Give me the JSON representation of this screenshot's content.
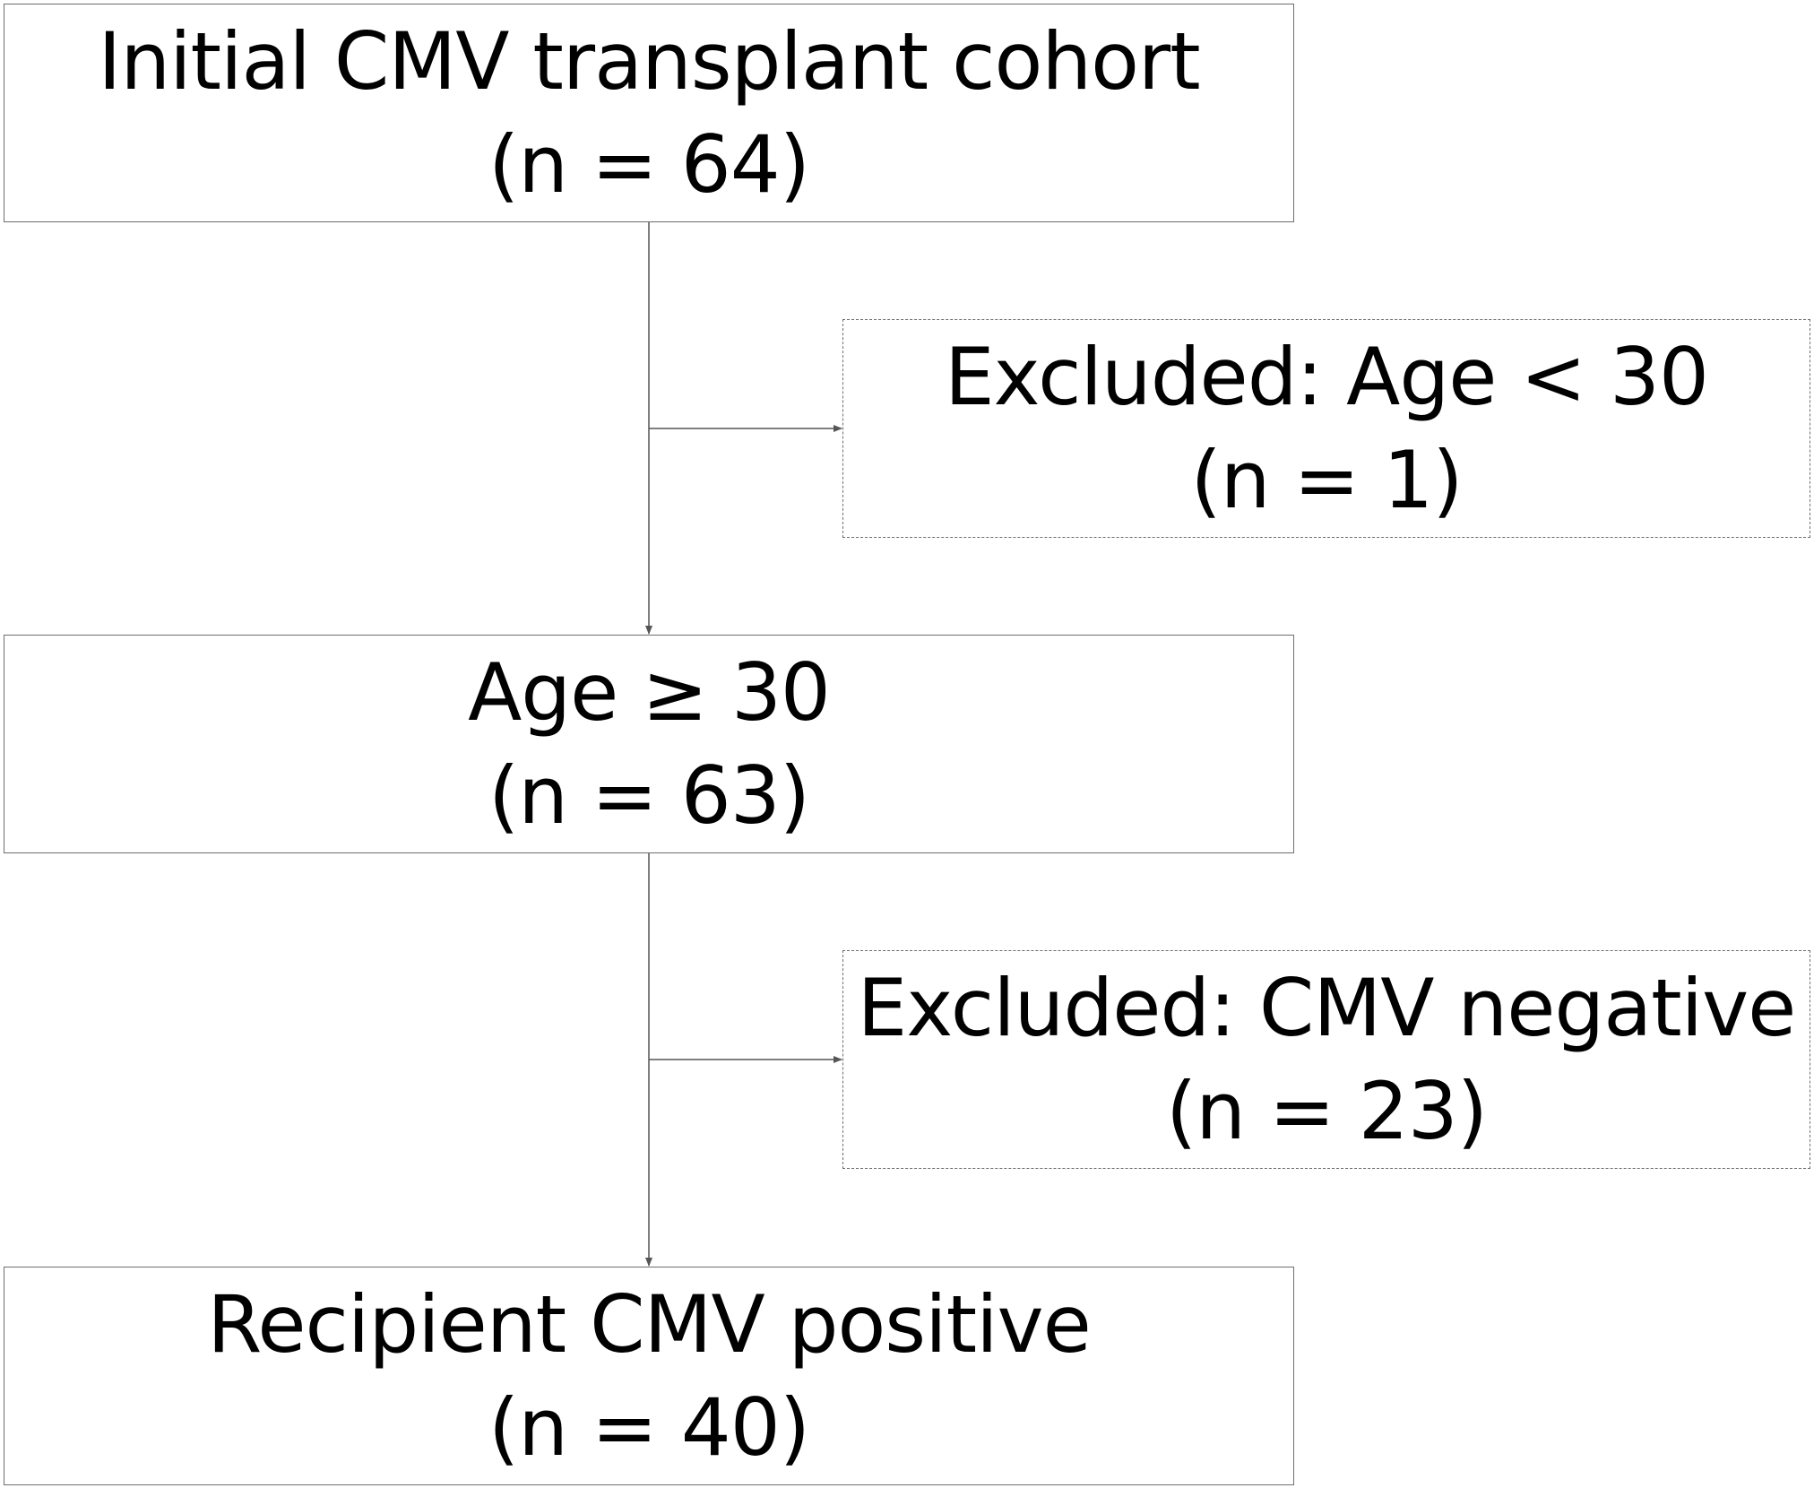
{
  "flowchart": {
    "step1": {
      "label": "Initial CMV transplant cohort",
      "count": "(n = 64)"
    },
    "exclusion1": {
      "label": "Excluded: Age < 30",
      "count": "(n = 1)"
    },
    "step2": {
      "label": "Age ≥ 30",
      "count": "(n = 63)"
    },
    "exclusion2": {
      "label": "Excluded: CMV negative",
      "count": "(n = 23)"
    },
    "step3": {
      "label": "Recipient CMV positive",
      "count": "(n = 40)"
    }
  },
  "colors": {
    "border": "#6e6e6e",
    "line": "#555555",
    "text": "#000000",
    "background": "#ffffff"
  }
}
